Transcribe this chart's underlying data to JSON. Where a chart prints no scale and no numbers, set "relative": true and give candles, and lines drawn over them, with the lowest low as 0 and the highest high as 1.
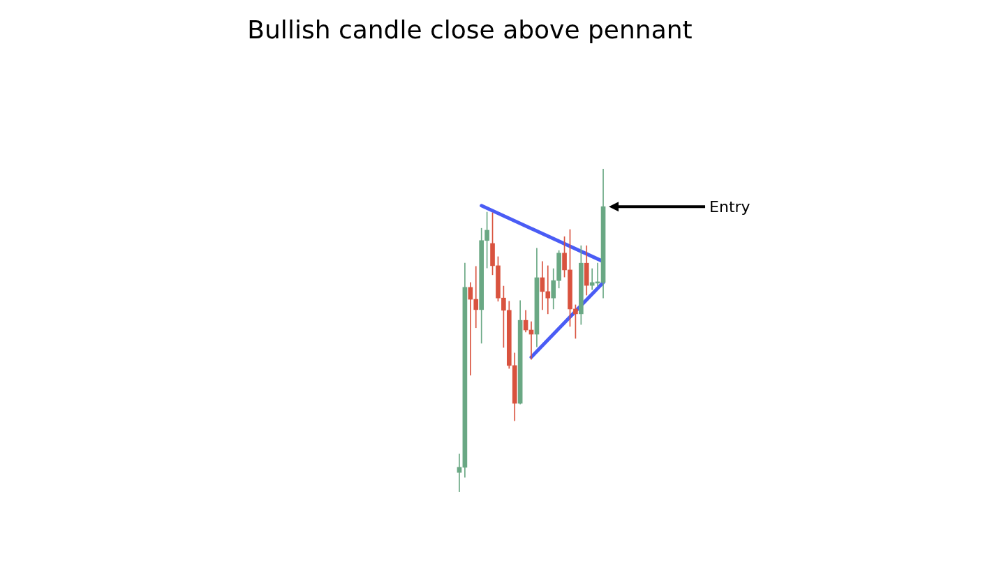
{
  "chart_data": {
    "type": "candlestick",
    "title": "Bullish candle close above pennant",
    "relative": true,
    "categories": [
      null,
      null,
      null,
      null,
      null,
      null,
      null,
      null,
      null,
      null,
      null,
      null,
      null,
      null,
      null,
      null,
      null,
      null,
      null,
      null,
      null,
      null,
      null,
      null,
      null,
      null,
      null
    ],
    "ohlc": [
      [
        0.06,
        0.117,
        0,
        0.076
      ],
      [
        0.076,
        0.708,
        0.045,
        0.633
      ],
      [
        0.633,
        0.648,
        0.361,
        0.596
      ],
      [
        0.596,
        0.698,
        0.508,
        0.564
      ],
      [
        0.564,
        0.816,
        0.46,
        0.778
      ],
      [
        0.778,
        0.866,
        0.693,
        0.81
      ],
      [
        0.769,
        0.864,
        0.672,
        0.7
      ],
      [
        0.7,
        0.728,
        0.59,
        0.6
      ],
      [
        0.6,
        0.637,
        0.447,
        0.562
      ],
      [
        0.562,
        0.59,
        0.382,
        0.391
      ],
      [
        0.391,
        0.43,
        0.22,
        0.274
      ],
      [
        0.274,
        0.592,
        0.272,
        0.531
      ],
      [
        0.531,
        0.562,
        0.495,
        0.501
      ],
      [
        0.501,
        0.527,
        0.41,
        0.488
      ],
      [
        0.488,
        0.754,
        0.449,
        0.663
      ],
      [
        0.663,
        0.713,
        0.564,
        0.62
      ],
      [
        0.62,
        0.7,
        0.551,
        0.6
      ],
      [
        0.6,
        0.691,
        0.566,
        0.654
      ],
      [
        0.654,
        0.747,
        0.631,
        0.739
      ],
      [
        0.739,
        0.79,
        0.665,
        0.687
      ],
      [
        0.687,
        0.812,
        0.512,
        0.566
      ],
      [
        0.566,
        0.579,
        0.475,
        0.551
      ],
      [
        0.551,
        0.762,
        0.518,
        0.708
      ],
      [
        0.708,
        0.762,
        0.609,
        0.639
      ],
      [
        0.639,
        0.691,
        0.626,
        0.648
      ],
      [
        0.646,
        0.708,
        0.637,
        0.648
      ],
      [
        0.648,
        1,
        0.6,
        0.883
      ]
    ],
    "colors": [
      "#6aa884",
      "#6aa884",
      "#d9533f",
      "#d9533f",
      "#6aa884",
      "#6aa884",
      "#d9533f",
      "#d9533f",
      "#d9533f",
      "#d9533f",
      "#d9533f",
      "#6aa884",
      "#d9533f",
      "#d9533f",
      "#6aa884",
      "#d9533f",
      "#d9533f",
      "#6aa884",
      "#6aa884",
      "#d9533f",
      "#d9533f",
      "#d9533f",
      "#6aa884",
      "#d9533f",
      "#6aa884",
      "#6aa884",
      "#6aa884"
    ],
    "series": [
      {
        "type": "line",
        "color": "#4a5cf5",
        "values": [
          null,
          null,
          null,
          null,
          0.886,
          null,
          null,
          null,
          null,
          null,
          null,
          null,
          null,
          null,
          null,
          null,
          null,
          null,
          null,
          null,
          null,
          null,
          null,
          null,
          null,
          null,
          0.713
        ]
      },
      {
        "type": "line",
        "color": "#4a5cf5",
        "values": [
          null,
          null,
          null,
          null,
          null,
          null,
          null,
          null,
          null,
          null,
          null,
          null,
          null,
          0.417,
          null,
          null,
          null,
          null,
          null,
          null,
          null,
          null,
          null,
          null,
          null,
          null,
          0.648
        ]
      }
    ],
    "annotations": [
      "Entry"
    ]
  }
}
